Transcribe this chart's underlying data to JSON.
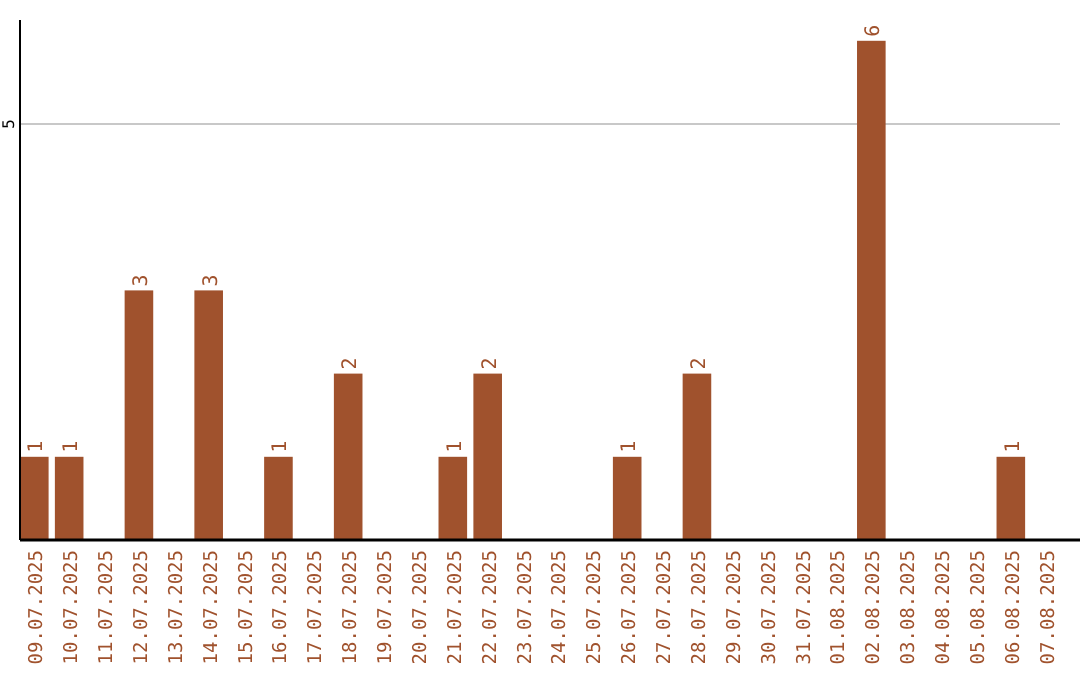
{
  "chart_data": {
    "type": "bar",
    "categories": [
      "09.07.2025",
      "10.07.2025",
      "11.07.2025",
      "12.07.2025",
      "13.07.2025",
      "14.07.2025",
      "15.07.2025",
      "16.07.2025",
      "17.07.2025",
      "18.07.2025",
      "19.07.2025",
      "20.07.2025",
      "21.07.2025",
      "22.07.2025",
      "23.07.2025",
      "24.07.2025",
      "25.07.2025",
      "26.07.2025",
      "27.07.2025",
      "28.07.2025",
      "29.07.2025",
      "30.07.2025",
      "31.07.2025",
      "01.08.2025",
      "02.08.2025",
      "03.08.2025",
      "04.08.2025",
      "05.08.2025",
      "06.08.2025",
      "07.08.2025"
    ],
    "values": [
      1,
      1,
      0,
      3,
      0,
      3,
      0,
      1,
      0,
      2,
      0,
      0,
      1,
      2,
      0,
      0,
      0,
      1,
      0,
      2,
      0,
      0,
      0,
      0,
      6,
      0,
      0,
      0,
      1,
      0
    ],
    "value_labels": [
      "1",
      "1",
      null,
      "3",
      null,
      "3",
      null,
      "1",
      null,
      "2",
      null,
      null,
      "1",
      "2",
      null,
      null,
      null,
      "1",
      null,
      "2",
      null,
      null,
      null,
      null,
      "6",
      null,
      null,
      null,
      "1",
      null
    ],
    "color": "#a0522d",
    "ylim": [
      0,
      6.25
    ],
    "yticks": [
      5
    ],
    "grid": "y"
  }
}
